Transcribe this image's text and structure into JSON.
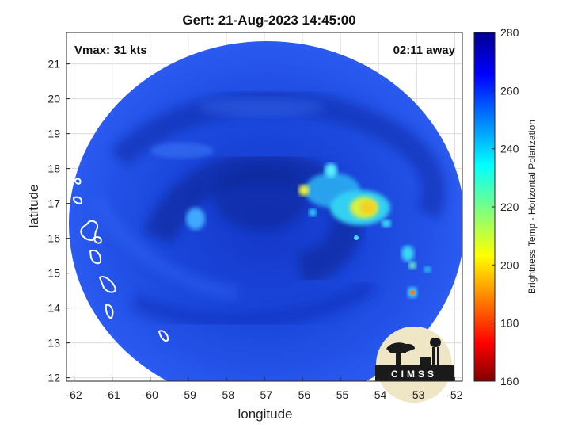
{
  "title": "Gert: 21-Aug-2023 14:45:00",
  "vmax_label": "Vmax: 31 kts",
  "time_away_label": "02:11 away",
  "x_axis_label": "longitude",
  "y_axis_label": "latitude",
  "x_ticks": [
    "-62",
    "-61",
    "-60",
    "-59",
    "-58",
    "-57",
    "-56",
    "-55",
    "-54",
    "-53",
    "-52"
  ],
  "y_ticks": [
    "12",
    "13",
    "14",
    "15",
    "16",
    "17",
    "18",
    "19",
    "20",
    "21"
  ],
  "colorbar_label": "Brightness Temp - Horizontal Polarization",
  "colorbar_ticks": [
    "280",
    "260",
    "240",
    "220",
    "200",
    "180",
    "160"
  ],
  "logo_text": "CIMSS",
  "colors": {
    "background_blue": "#1d4be0",
    "dark_blue": "#0a2c9e",
    "cyan": "#35d2f5",
    "yellow": "#f3ee30",
    "orange": "#ff8c10",
    "logo_bg": "#f0e6c8"
  },
  "chart_data": {
    "type": "heatmap",
    "title": "Gert: 21-Aug-2023 14:45:00",
    "xlabel": "longitude",
    "ylabel": "latitude",
    "xlim": [
      -62.2,
      -51.8
    ],
    "ylim": [
      11.9,
      21.9
    ],
    "x_ticks": [
      -62,
      -61,
      -60,
      -59,
      -58,
      -57,
      -56,
      -55,
      -54,
      -53,
      -52
    ],
    "y_ticks": [
      12,
      13,
      14,
      15,
      16,
      17,
      18,
      19,
      20,
      21
    ],
    "colorbar": {
      "label": "Brightness Temp - Horizontal Polarization",
      "range": [
        160,
        280
      ],
      "ticks": [
        280,
        260,
        240,
        220,
        200,
        180,
        160
      ],
      "colormap": "jet"
    },
    "grid": true
  }
}
